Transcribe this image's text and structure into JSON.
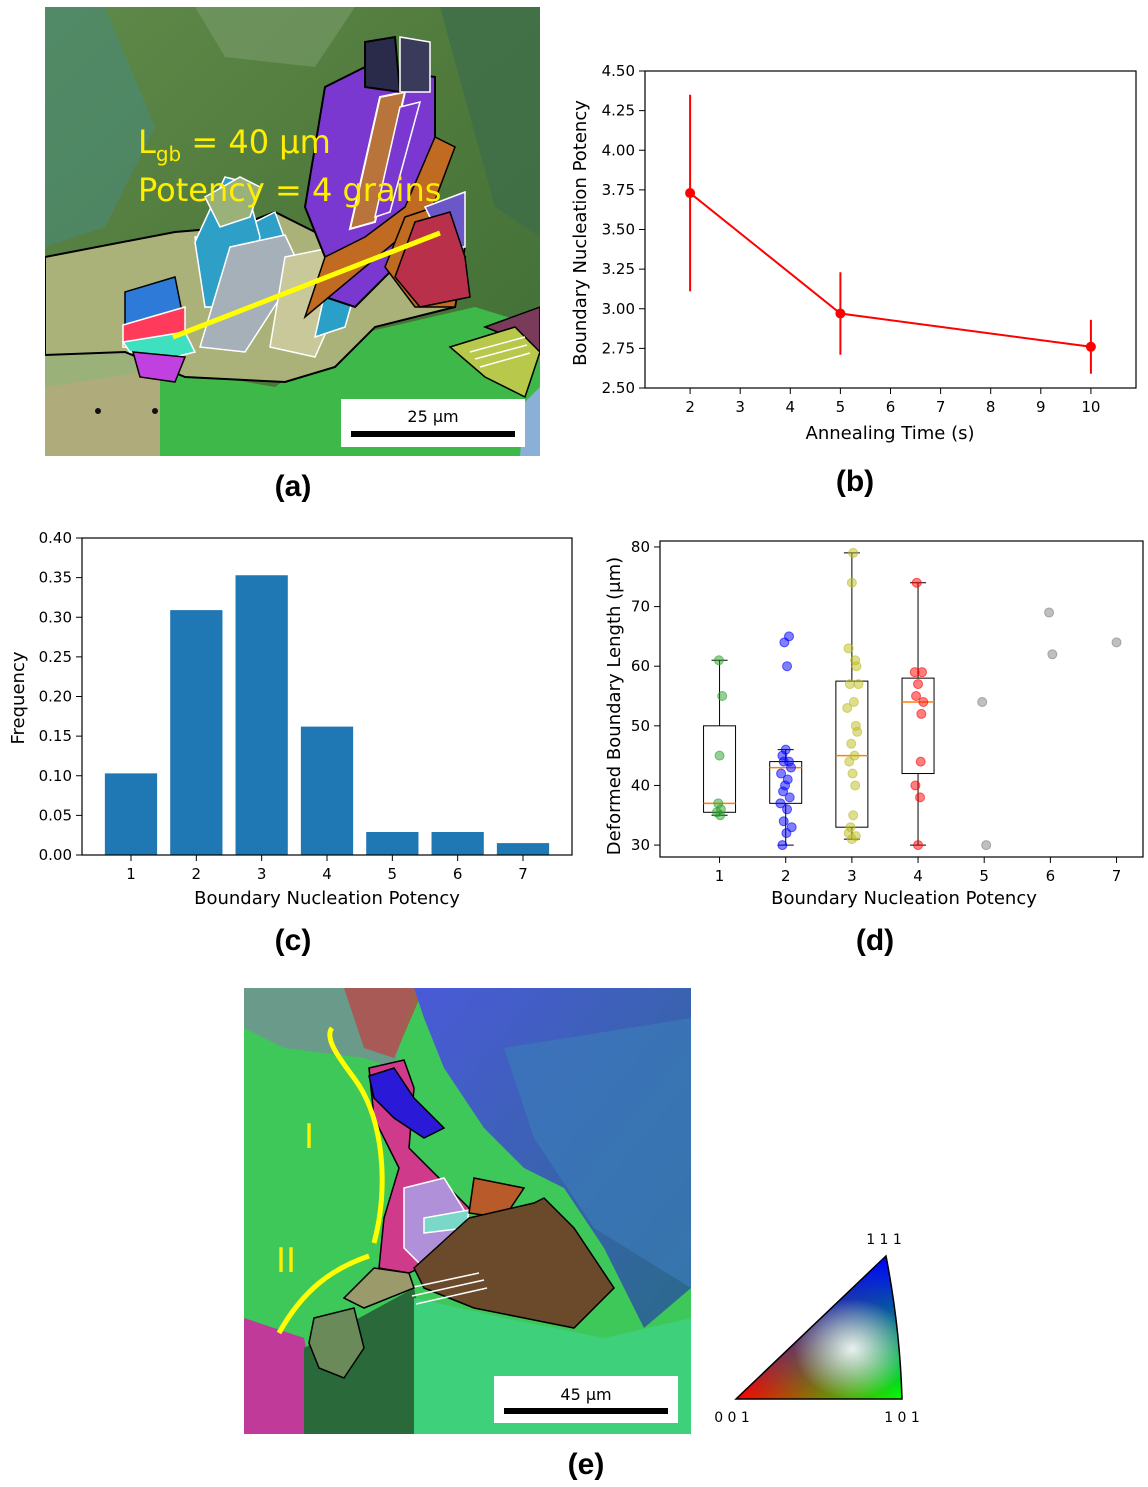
{
  "panel_labels": {
    "a": "(a)",
    "b": "(b)",
    "c": "(c)",
    "d": "(d)",
    "e": "(e)"
  },
  "micrograph_a": {
    "annotation_line1_main": "L",
    "annotation_line1_sub": "gb",
    "annotation_line1_rest": " = 40 μm",
    "annotation_line2": "Potency = 4 grains",
    "scale_bar": "25 μm"
  },
  "micrograph_e": {
    "region_labels": [
      "I",
      "II"
    ],
    "scale_bar": "45 μm",
    "ipf_corners": {
      "top": "1 1 1",
      "left": "0 0 1",
      "right": "1 0 1"
    }
  },
  "chart_data": [
    {
      "id": "b",
      "type": "line",
      "title": "",
      "xlabel": "Annealing Time (s)",
      "ylabel": "Boundary Nucleation Potency",
      "xlim": [
        1.1,
        10.9
      ],
      "ylim": [
        2.5,
        4.5
      ],
      "xticks": [
        2,
        3,
        4,
        5,
        6,
        7,
        8,
        9,
        10
      ],
      "yticks": [
        "2.50",
        "2.75",
        "3.00",
        "3.25",
        "3.50",
        "3.75",
        "4.00",
        "4.25",
        "4.50"
      ],
      "color": "#ff0000",
      "grid": false,
      "x": [
        2,
        5,
        10
      ],
      "y": [
        3.73,
        2.97,
        2.76
      ],
      "yerr_low": [
        3.11,
        2.71,
        2.59
      ],
      "yerr_high": [
        4.35,
        3.23,
        2.93
      ]
    },
    {
      "id": "c",
      "type": "bar",
      "title": "",
      "xlabel": "Boundary Nucleation Potency",
      "ylabel": "Frequency",
      "ylim": [
        0,
        0.4
      ],
      "yticks": [
        "0.00",
        "0.05",
        "0.10",
        "0.15",
        "0.20",
        "0.25",
        "0.30",
        "0.35",
        "0.40"
      ],
      "categories": [
        "1",
        "2",
        "3",
        "4",
        "5",
        "6",
        "7"
      ],
      "values": [
        0.103,
        0.309,
        0.353,
        0.162,
        0.029,
        0.029,
        0.015
      ],
      "color": "#1f77b4",
      "grid": false
    },
    {
      "id": "d",
      "type": "scatter",
      "title": "",
      "xlabel": "Boundary Nucleation Potency",
      "ylabel": "Deformed Boundary Length (μm)",
      "xlim": [
        0.1,
        7.4
      ],
      "ylim": [
        28,
        81
      ],
      "xticks": [
        1,
        2,
        3,
        4,
        5,
        6,
        7
      ],
      "yticks": [
        30,
        40,
        50,
        60,
        70,
        80
      ],
      "grid": false,
      "boxes": [
        {
          "x": 1,
          "whisker_low": 35,
          "q1": 35.5,
          "median": 37,
          "q3": 50,
          "whisker_high": 61
        },
        {
          "x": 2,
          "whisker_low": 30,
          "q1": 37,
          "median": 43,
          "q3": 44,
          "whisker_high": 46
        },
        {
          "x": 3,
          "whisker_low": 31,
          "q1": 33,
          "median": 45,
          "q3": 57.5,
          "whisker_high": 79
        },
        {
          "x": 4,
          "whisker_low": 30,
          "q1": 42,
          "median": 54,
          "q3": 58,
          "whisker_high": 74
        }
      ],
      "series": [
        {
          "category": 1,
          "color": "#2ca02c",
          "points": [
            [
              0.99,
              61
            ],
            [
              1.04,
              55
            ],
            [
              1.0,
              45
            ],
            [
              0.98,
              37
            ],
            [
              1.02,
              36
            ],
            [
              0.96,
              35.5
            ],
            [
              1.01,
              35
            ]
          ]
        },
        {
          "category": 2,
          "color": "#0000ff",
          "points": [
            [
              1.98,
              64
            ],
            [
              2.05,
              65
            ],
            [
              2.02,
              60
            ],
            [
              2.0,
              46
            ],
            [
              1.95,
              45
            ],
            [
              2.05,
              44
            ],
            [
              1.97,
              44
            ],
            [
              2.08,
              43
            ],
            [
              1.93,
              42
            ],
            [
              2.03,
              41
            ],
            [
              1.99,
              40
            ],
            [
              1.96,
              39
            ],
            [
              2.06,
              38
            ],
            [
              1.92,
              37
            ],
            [
              2.02,
              36
            ],
            [
              1.97,
              34
            ],
            [
              2.09,
              33
            ],
            [
              2.01,
              32
            ],
            [
              1.95,
              30
            ]
          ]
        },
        {
          "category": 3,
          "color": "#bcbd22",
          "points": [
            [
              3.02,
              79
            ],
            [
              3.0,
              74
            ],
            [
              2.95,
              63
            ],
            [
              3.05,
              61
            ],
            [
              3.07,
              60
            ],
            [
              2.97,
              57
            ],
            [
              3.1,
              57
            ],
            [
              3.03,
              54
            ],
            [
              2.93,
              53
            ],
            [
              3.06,
              50
            ],
            [
              3.08,
              49
            ],
            [
              2.99,
              47
            ],
            [
              3.04,
              45
            ],
            [
              2.96,
              44
            ],
            [
              3.01,
              42
            ],
            [
              3.05,
              40
            ],
            [
              3.02,
              35
            ],
            [
              2.98,
              33
            ],
            [
              2.95,
              32
            ],
            [
              3.06,
              31.5
            ],
            [
              3.0,
              31
            ]
          ]
        },
        {
          "category": 4,
          "color": "#ff0000",
          "points": [
            [
              3.98,
              74
            ],
            [
              3.95,
              59
            ],
            [
              4.06,
              59
            ],
            [
              4.0,
              57
            ],
            [
              3.97,
              55
            ],
            [
              4.08,
              54
            ],
            [
              4.05,
              52
            ],
            [
              4.04,
              44
            ],
            [
              3.96,
              40
            ],
            [
              4.03,
              38
            ],
            [
              4.0,
              30
            ]
          ]
        },
        {
          "category": 5,
          "color": "#7f7f7f",
          "points": [
            [
              4.97,
              54
            ],
            [
              5.03,
              30
            ]
          ]
        },
        {
          "category": 6,
          "color": "#7f7f7f",
          "points": [
            [
              5.98,
              69
            ],
            [
              6.03,
              62
            ]
          ]
        },
        {
          "category": 7,
          "color": "#7f7f7f",
          "points": [
            [
              7.0,
              64
            ]
          ]
        }
      ]
    }
  ]
}
